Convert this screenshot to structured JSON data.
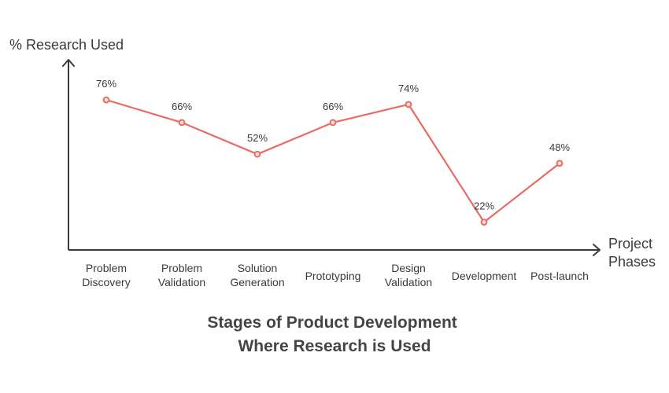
{
  "chart_data": {
    "type": "line",
    "title_lines": [
      "Stages of Product Development",
      "Where Research is Used"
    ],
    "ylabel": "% Research Used",
    "xlabel_lines": [
      "Project",
      "Phases"
    ],
    "categories": [
      [
        "Problem",
        "Discovery"
      ],
      [
        "Problem",
        "Validation"
      ],
      [
        "Solution",
        "Generation"
      ],
      [
        "Prototyping"
      ],
      [
        "Design",
        "Validation"
      ],
      [
        "Development"
      ],
      [
        "Post-launch"
      ]
    ],
    "values": [
      76,
      66,
      52,
      66,
      74,
      22,
      48
    ],
    "value_labels": [
      "76%",
      "66%",
      "52%",
      "66%",
      "74%",
      "22%",
      "48%"
    ],
    "ylim": [
      0,
      100
    ],
    "grid": false,
    "legend": "none",
    "colors": {
      "line": "#ea6b63",
      "point_fill": "#fde3e0",
      "axis": "#3a3a3a",
      "title": "#454545"
    }
  }
}
